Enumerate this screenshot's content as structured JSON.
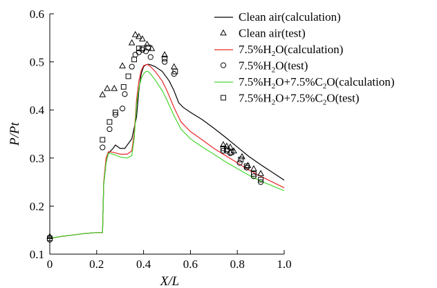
{
  "chart_data": {
    "type": "line",
    "xlabel": "X/L",
    "ylabel": "P/Pt",
    "xlim": [
      0.0,
      1.0
    ],
    "ylim": [
      0.1,
      0.6
    ],
    "xticks": [
      "0",
      "0.2",
      "0.4",
      "0.6",
      "0.8",
      "1.0"
    ],
    "yticks": [
      "0.1",
      "0.2",
      "0.3",
      "0.4",
      "0.5",
      "0.6"
    ],
    "legend_position": "top-right",
    "series": [
      {
        "name": "Clean air(calculation)",
        "kind": "line",
        "color": "#000000",
        "x": [
          0,
          0.05,
          0.1,
          0.15,
          0.2,
          0.225,
          0.23,
          0.24,
          0.25,
          0.27,
          0.28,
          0.3,
          0.32,
          0.35,
          0.37,
          0.38,
          0.39,
          0.4,
          0.41,
          0.42,
          0.43,
          0.45,
          0.48,
          0.51,
          0.53,
          0.55,
          0.57,
          0.6,
          0.65,
          0.7,
          0.75,
          0.8,
          0.85,
          0.9,
          0.95,
          1.0
        ],
        "y": [
          0.133,
          0.137,
          0.14,
          0.143,
          0.145,
          0.145,
          0.245,
          0.29,
          0.31,
          0.32,
          0.327,
          0.32,
          0.32,
          0.34,
          0.385,
          0.44,
          0.475,
          0.49,
          0.494,
          0.495,
          0.494,
          0.49,
          0.48,
          0.46,
          0.44,
          0.415,
          0.405,
          0.395,
          0.38,
          0.362,
          0.343,
          0.323,
          0.303,
          0.286,
          0.27,
          0.254
        ]
      },
      {
        "name": "7.5%H2O(calculation)",
        "kind": "line",
        "color": "#e8262a",
        "x": [
          0,
          0.05,
          0.1,
          0.15,
          0.2,
          0.225,
          0.23,
          0.24,
          0.25,
          0.27,
          0.3,
          0.33,
          0.35,
          0.36,
          0.37,
          0.38,
          0.39,
          0.4,
          0.41,
          0.42,
          0.43,
          0.45,
          0.48,
          0.5,
          0.53,
          0.56,
          0.6,
          0.65,
          0.7,
          0.75,
          0.8,
          0.85,
          0.9,
          0.95,
          1.0
        ],
        "y": [
          0.133,
          0.137,
          0.14,
          0.143,
          0.145,
          0.145,
          0.25,
          0.3,
          0.313,
          0.312,
          0.308,
          0.308,
          0.315,
          0.35,
          0.42,
          0.46,
          0.482,
          0.492,
          0.494,
          0.494,
          0.49,
          0.48,
          0.46,
          0.44,
          0.405,
          0.375,
          0.355,
          0.338,
          0.32,
          0.305,
          0.29,
          0.275,
          0.262,
          0.25,
          0.238
        ]
      },
      {
        "name": "7.5%H2O+7.5%C2O(calculation)",
        "kind": "line",
        "color": "#44d62c",
        "x": [
          0,
          0.05,
          0.1,
          0.15,
          0.2,
          0.225,
          0.23,
          0.24,
          0.25,
          0.27,
          0.3,
          0.33,
          0.35,
          0.36,
          0.37,
          0.38,
          0.39,
          0.4,
          0.41,
          0.42,
          0.43,
          0.45,
          0.48,
          0.5,
          0.53,
          0.56,
          0.6,
          0.65,
          0.7,
          0.75,
          0.8,
          0.85,
          0.9,
          0.95,
          1.0
        ],
        "y": [
          0.133,
          0.137,
          0.14,
          0.143,
          0.145,
          0.145,
          0.245,
          0.29,
          0.31,
          0.308,
          0.302,
          0.3,
          0.305,
          0.34,
          0.41,
          0.445,
          0.465,
          0.475,
          0.48,
          0.48,
          0.475,
          0.462,
          0.44,
          0.42,
          0.388,
          0.36,
          0.34,
          0.323,
          0.308,
          0.292,
          0.278,
          0.264,
          0.252,
          0.242,
          0.232
        ]
      },
      {
        "name": "Clean air(test)",
        "kind": "marker",
        "marker": "triangle",
        "x": [
          0,
          0.225,
          0.245,
          0.275,
          0.31,
          0.35,
          0.365,
          0.38,
          0.395,
          0.415,
          0.435,
          0.49,
          0.53,
          0.74,
          0.755,
          0.77,
          0.785,
          0.82,
          0.845,
          0.87,
          0.9
        ],
        "y": [
          0.137,
          0.432,
          0.445,
          0.445,
          0.492,
          0.54,
          0.557,
          0.553,
          0.548,
          0.537,
          0.528,
          0.515,
          0.49,
          0.328,
          0.325,
          0.323,
          0.315,
          0.303,
          0.285,
          0.278,
          0.268
        ]
      },
      {
        "name": "7.5%H2O(test)",
        "kind": "marker",
        "marker": "circle",
        "x": [
          0,
          0.225,
          0.255,
          0.28,
          0.31,
          0.32,
          0.35,
          0.365,
          0.38,
          0.395,
          0.41,
          0.43,
          0.49,
          0.53,
          0.74,
          0.755,
          0.77,
          0.81,
          0.84,
          0.87,
          0.9
        ],
        "y": [
          0.13,
          0.322,
          0.36,
          0.39,
          0.403,
          0.433,
          0.49,
          0.515,
          0.52,
          0.525,
          0.522,
          0.51,
          0.5,
          0.475,
          0.315,
          0.315,
          0.31,
          0.29,
          0.28,
          0.262,
          0.25
        ]
      },
      {
        "name": "7.5%H2O+7.5%C2O(test)",
        "kind": "marker",
        "marker": "square",
        "x": [
          0,
          0.225,
          0.255,
          0.28,
          0.315,
          0.335,
          0.36,
          0.38,
          0.395,
          0.42,
          0.49,
          0.535,
          0.74,
          0.755,
          0.775,
          0.815,
          0.84,
          0.87,
          0.9
        ],
        "y": [
          0.133,
          0.338,
          0.375,
          0.395,
          0.448,
          0.47,
          0.505,
          0.528,
          0.528,
          0.53,
          0.507,
          0.48,
          0.32,
          0.318,
          0.312,
          0.297,
          0.283,
          0.267,
          0.255
        ]
      }
    ],
    "legend": [
      {
        "kind": "line",
        "color": "#000000",
        "text": "Clean air(calculation)"
      },
      {
        "kind": "marker",
        "marker": "triangle",
        "text": "Clean air(test)"
      },
      {
        "kind": "line",
        "color": "#e8262a",
        "text": "7.5%H2O(calculation)"
      },
      {
        "kind": "marker",
        "marker": "circle",
        "text": "7.5%H2O(test)"
      },
      {
        "kind": "line",
        "color": "#44d62c",
        "text": "7.5%H2O+7.5%C2O(calculation)"
      },
      {
        "kind": "marker",
        "marker": "square",
        "text": "7.5%H2O+7.5%C2O(test)"
      }
    ]
  }
}
